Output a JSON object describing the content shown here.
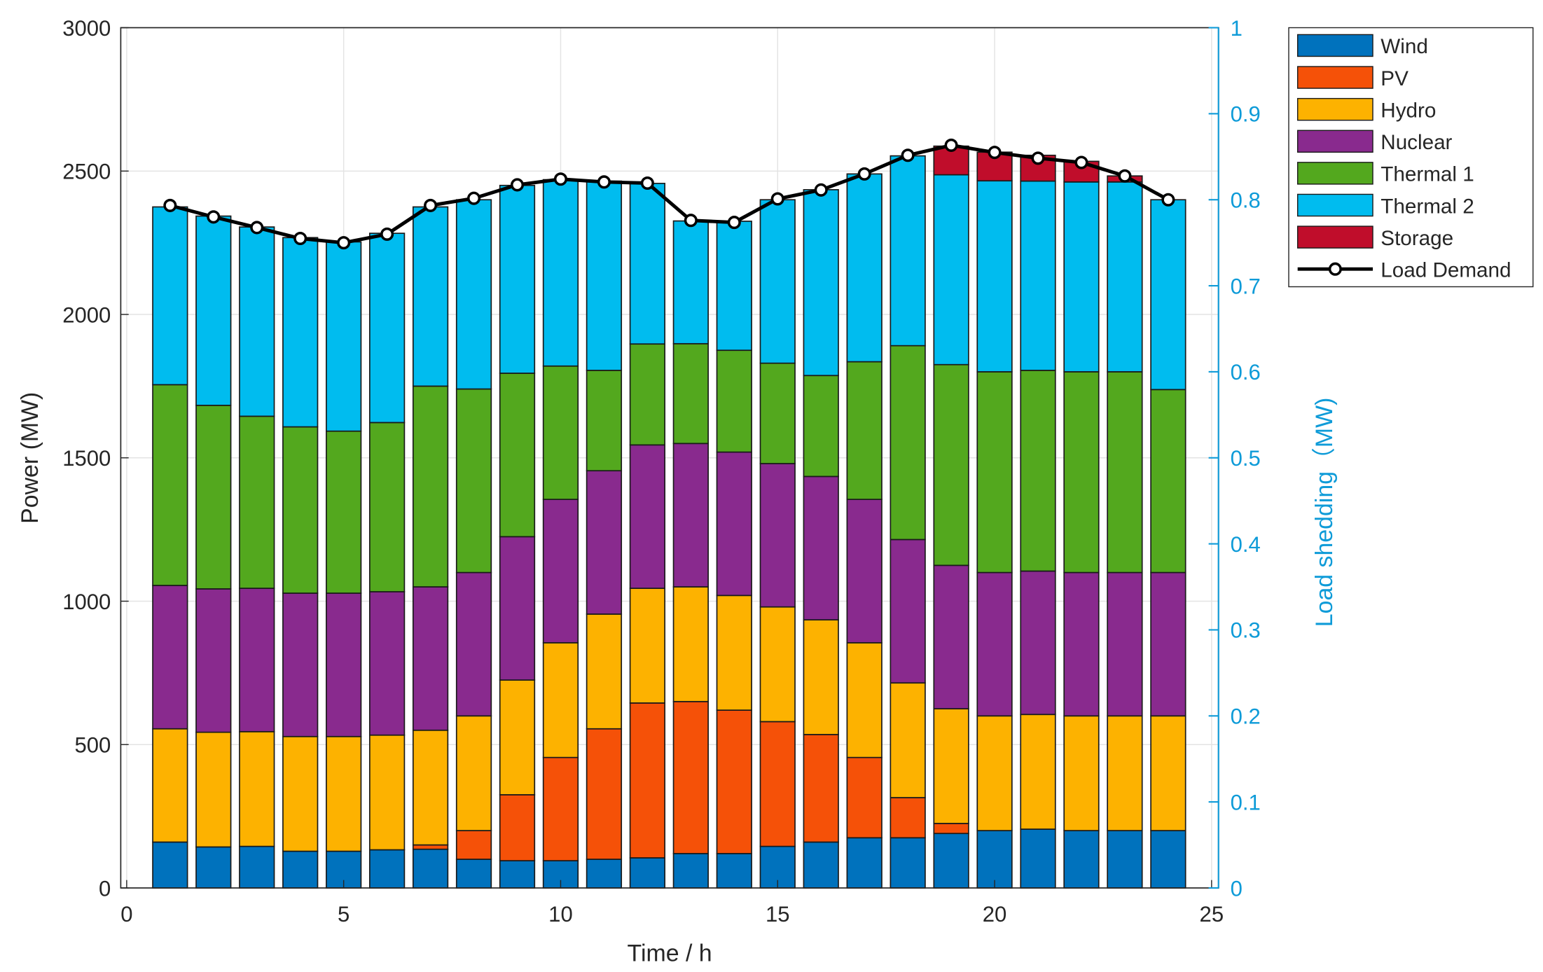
{
  "chart_data": {
    "type": "bar",
    "stacked": true,
    "title": "",
    "xlabel": "Time / h",
    "ylabel": "Power (MW)",
    "y2label": "Load shedding（MW)",
    "xlim": [
      0,
      25
    ],
    "ylim": [
      0,
      3000
    ],
    "y2lim": [
      0,
      1
    ],
    "xticks": [
      "0",
      "5",
      "10",
      "15",
      "20",
      "25"
    ],
    "yticks": [
      "0",
      "500",
      "1000",
      "1500",
      "2000",
      "2500",
      "3000"
    ],
    "y2ticks": [
      "0",
      "0.1",
      "0.2",
      "0.3",
      "0.4",
      "0.5",
      "0.6",
      "0.7",
      "0.8",
      "0.9",
      "1"
    ],
    "grid": true,
    "legend_position": "outside-right-top",
    "x": [
      1,
      2,
      3,
      4,
      5,
      6,
      7,
      8,
      9,
      10,
      11,
      12,
      13,
      14,
      15,
      16,
      17,
      18,
      19,
      20,
      21,
      22,
      23,
      24
    ],
    "series": [
      {
        "name": "Wind",
        "color": "#0072BD",
        "values": [
          160,
          143,
          145,
          128,
          128,
          133,
          135,
          100,
          95,
          95,
          100,
          105,
          120,
          120,
          145,
          160,
          175,
          175,
          190,
          200,
          205,
          200,
          200,
          200
        ]
      },
      {
        "name": "PV",
        "color": "#F55108",
        "values": [
          0,
          0,
          0,
          0,
          0,
          0,
          15,
          100,
          230,
          360,
          455,
          540,
          530,
          500,
          435,
          375,
          280,
          140,
          35,
          0,
          0,
          0,
          0,
          0
        ]
      },
      {
        "name": "Hydro",
        "color": "#FDB200",
        "values": [
          395,
          400,
          400,
          400,
          400,
          400,
          400,
          400,
          400,
          400,
          400,
          400,
          400,
          400,
          400,
          400,
          400,
          400,
          400,
          400,
          400,
          400,
          400,
          400
        ]
      },
      {
        "name": "Nuclear",
        "color": "#892A8E",
        "values": [
          500,
          500,
          500,
          500,
          500,
          500,
          500,
          500,
          500,
          500,
          500,
          500,
          500,
          500,
          500,
          500,
          500,
          500,
          500,
          500,
          500,
          500,
          500,
          500
        ]
      },
      {
        "name": "Thermal 1",
        "color": "#53A81E",
        "values": [
          700,
          640,
          600,
          580,
          565,
          590,
          700,
          640,
          570,
          465,
          350,
          352,
          348,
          355,
          350,
          352,
          480,
          676,
          700,
          700,
          700,
          700,
          700,
          638
        ]
      },
      {
        "name": "Thermal 2",
        "color": "#00BCEF",
        "values": [
          620,
          660,
          660,
          660,
          660,
          660,
          625,
          660,
          655,
          650,
          660,
          560,
          428,
          450,
          570,
          648,
          655,
          662,
          662,
          666,
          660,
          662,
          662,
          662
        ]
      },
      {
        "name": "Storage",
        "color": "#C00D2B",
        "values": [
          0,
          0,
          0,
          0,
          0,
          0,
          0,
          0,
          0,
          0,
          0,
          0,
          0,
          0,
          0,
          0,
          0,
          0,
          100,
          100,
          90,
          72,
          21,
          0
        ]
      }
    ],
    "line": {
      "name": "Load Demand",
      "color": "#000000",
      "values": [
        2380,
        2340,
        2303,
        2265,
        2250,
        2280,
        2380,
        2405,
        2452,
        2472,
        2462,
        2458,
        2328,
        2321,
        2403,
        2434,
        2490,
        2555,
        2590,
        2565,
        2545,
        2530,
        2483,
        2400
      ]
    },
    "axis2_color": "#0E9BD8"
  }
}
